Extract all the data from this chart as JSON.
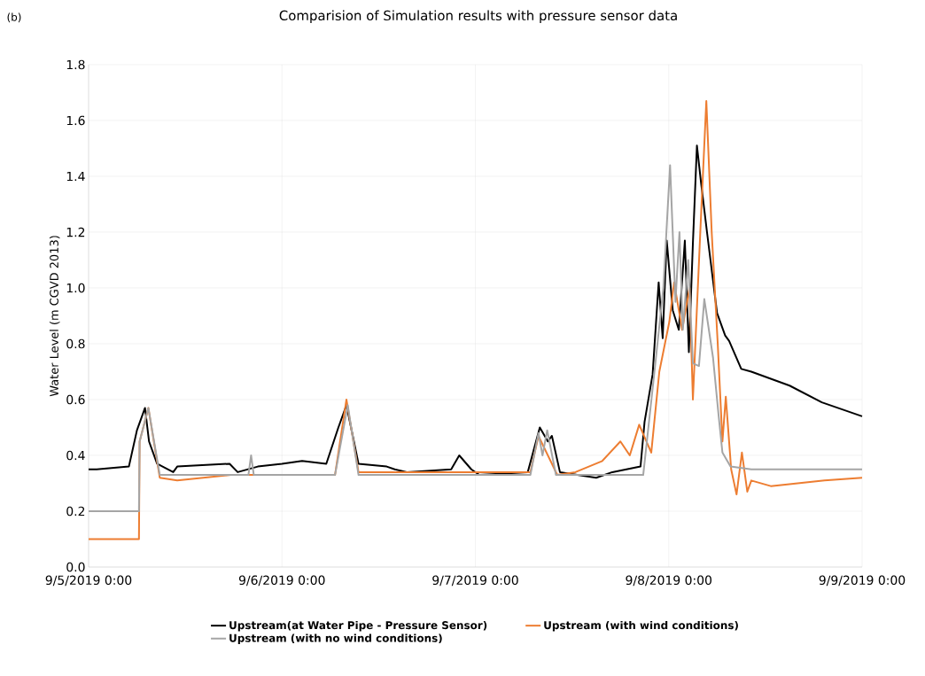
{
  "chart_data": {
    "type": "line",
    "title": "Comparision of Simulation results with pressure sensor data",
    "ylabel": "Water Level (m CGVD 2013)",
    "annotations": [
      "(b)"
    ],
    "xlim": [
      "2019-09-05T00:00",
      "2019-09-09T00:00"
    ],
    "xticks": [
      {
        "value": "2019-09-05T00:00",
        "label": "9/5/2019 0:00"
      },
      {
        "value": "2019-09-06T00:00",
        "label": "9/6/2019 0:00"
      },
      {
        "value": "2019-09-07T00:00",
        "label": "9/7/2019 0:00"
      },
      {
        "value": "2019-09-08T00:00",
        "label": "9/8/2019 0:00"
      },
      {
        "value": "2019-09-09T00:00",
        "label": "9/9/2019 0:00"
      }
    ],
    "ylim": [
      0,
      1.8
    ],
    "yticks": [
      {
        "value": 0,
        "label": "0.0"
      },
      {
        "value": 0.2,
        "label": "0.2"
      },
      {
        "value": 0.4,
        "label": "0.4"
      },
      {
        "value": 0.6,
        "label": "0.6"
      },
      {
        "value": 0.8,
        "label": "0.8"
      },
      {
        "value": 1.0,
        "label": "1.0"
      },
      {
        "value": 1.2,
        "label": "1.2"
      },
      {
        "value": 1.4,
        "label": "1.4"
      },
      {
        "value": 1.6,
        "label": "1.6"
      },
      {
        "value": 1.8,
        "label": "1.8"
      }
    ],
    "grid": true,
    "legend": "bottom",
    "marker": "none",
    "line_style": "solid",
    "series": [
      {
        "name": "Upstream(at Water Pipe - Pressure Sensor)",
        "color": "#000000",
        "x": [
          "2019-09-05T00:00",
          "2019-09-05T01:00",
          "2019-09-05T05:00",
          "2019-09-05T06:00",
          "2019-09-05T07:00",
          "2019-09-05T07:30",
          "2019-09-05T08:30",
          "2019-09-05T10:30",
          "2019-09-05T11:00",
          "2019-09-05T17:30",
          "2019-09-05T18:30",
          "2019-09-05T21:00",
          "2019-09-06T00:00",
          "2019-09-06T02:30",
          "2019-09-06T05:30",
          "2019-09-06T07:00",
          "2019-09-06T08:00",
          "2019-09-06T09:30",
          "2019-09-06T13:00",
          "2019-09-06T14:00",
          "2019-09-06T15:30",
          "2019-09-06T21:00",
          "2019-09-06T22:00",
          "2019-09-06T23:30",
          "2019-09-07T00:30",
          "2019-09-07T06:30",
          "2019-09-07T08:00",
          "2019-09-07T09:00",
          "2019-09-07T09:30",
          "2019-09-07T10:30",
          "2019-09-07T15:00",
          "2019-09-07T17:00",
          "2019-09-07T20:30",
          "2019-09-07T21:00",
          "2019-09-07T22:00",
          "2019-09-07T22:45",
          "2019-09-07T23:15",
          "2019-09-07T23:45",
          "2019-09-08T00:30",
          "2019-09-08T01:15",
          "2019-09-08T02:00",
          "2019-09-08T02:30",
          "2019-09-08T03:00",
          "2019-09-08T03:30",
          "2019-09-08T04:00",
          "2019-09-08T04:45",
          "2019-09-08T06:00",
          "2019-09-08T07:00",
          "2019-09-08T07:30",
          "2019-09-08T09:00",
          "2019-09-08T10:15",
          "2019-09-08T15:00",
          "2019-09-08T19:00",
          "2019-09-09T00:00"
        ],
        "values": [
          0.35,
          0.35,
          0.36,
          0.49,
          0.57,
          0.45,
          0.37,
          0.34,
          0.36,
          0.37,
          0.34,
          0.36,
          0.37,
          0.38,
          0.37,
          0.5,
          0.58,
          0.37,
          0.36,
          0.35,
          0.34,
          0.35,
          0.4,
          0.35,
          0.33,
          0.34,
          0.5,
          0.45,
          0.47,
          0.34,
          0.32,
          0.34,
          0.36,
          0.52,
          0.69,
          1.02,
          0.82,
          1.17,
          0.92,
          0.85,
          1.17,
          0.77,
          1.16,
          1.51,
          1.38,
          1.2,
          0.91,
          0.83,
          0.81,
          0.71,
          0.7,
          0.65,
          0.59,
          0.54
        ]
      },
      {
        "name": "Upstream (with wind conditions)",
        "color": "#ed7d31",
        "x": [
          "2019-09-05T00:00",
          "2019-09-05T06:15",
          "2019-09-05T06:20",
          "2019-09-05T07:25",
          "2019-09-05T08:50",
          "2019-09-05T11:00",
          "2019-09-05T17:40",
          "2019-09-06T06:35",
          "2019-09-06T08:00",
          "2019-09-06T09:30",
          "2019-09-07T06:50",
          "2019-09-07T07:50",
          "2019-09-07T10:10",
          "2019-09-07T12:25",
          "2019-09-07T15:45",
          "2019-09-07T18:00",
          "2019-09-07T19:10",
          "2019-09-07T20:20",
          "2019-09-07T21:50",
          "2019-09-07T22:50",
          "2019-09-08T00:05",
          "2019-09-08T00:40",
          "2019-09-08T01:40",
          "2019-09-08T02:35",
          "2019-09-08T03:00",
          "2019-09-08T03:55",
          "2019-09-08T04:40",
          "2019-09-08T05:20",
          "2019-09-08T06:05",
          "2019-09-08T06:40",
          "2019-09-08T07:05",
          "2019-09-08T07:45",
          "2019-09-08T08:25",
          "2019-09-08T09:05",
          "2019-09-08T09:45",
          "2019-09-08T10:15",
          "2019-09-08T12:40",
          "2019-09-08T16:00",
          "2019-09-08T19:20",
          "2019-09-09T00:00"
        ],
        "values": [
          0.1,
          0.1,
          0.45,
          0.57,
          0.32,
          0.31,
          0.33,
          0.33,
          0.6,
          0.34,
          0.34,
          0.47,
          0.33,
          0.34,
          0.38,
          0.45,
          0.4,
          0.51,
          0.41,
          0.7,
          0.88,
          1.02,
          0.85,
          1.0,
          0.6,
          1.2,
          1.67,
          1.2,
          0.8,
          0.45,
          0.61,
          0.35,
          0.26,
          0.41,
          0.27,
          0.31,
          0.29,
          0.3,
          0.31,
          0.32
        ]
      },
      {
        "name": "Upstream (with no wind conditions)",
        "color": "#a5a5a5",
        "x": [
          "2019-09-05T00:00",
          "2019-09-05T06:15",
          "2019-09-05T06:20",
          "2019-09-05T07:25",
          "2019-09-05T08:50",
          "2019-09-05T19:50",
          "2019-09-05T20:10",
          "2019-09-05T20:30",
          "2019-09-06T06:35",
          "2019-09-06T08:10",
          "2019-09-06T09:30",
          "2019-09-07T06:50",
          "2019-09-07T07:50",
          "2019-09-07T08:20",
          "2019-09-07T08:55",
          "2019-09-07T10:00",
          "2019-09-07T20:50",
          "2019-09-07T22:25",
          "2019-09-07T23:20",
          "2019-09-08T00:10",
          "2019-09-08T00:50",
          "2019-09-08T01:20",
          "2019-09-08T01:45",
          "2019-09-08T02:25",
          "2019-09-08T03:00",
          "2019-09-08T03:45",
          "2019-09-08T04:25",
          "2019-09-08T05:30",
          "2019-09-08T06:10",
          "2019-09-08T06:40",
          "2019-09-08T07:40",
          "2019-09-08T10:15",
          "2019-09-09T00:00"
        ],
        "values": [
          0.2,
          0.2,
          0.45,
          0.57,
          0.33,
          0.33,
          0.4,
          0.33,
          0.33,
          0.58,
          0.33,
          0.33,
          0.48,
          0.4,
          0.49,
          0.33,
          0.33,
          0.75,
          1.0,
          1.44,
          0.95,
          1.2,
          0.85,
          1.1,
          0.73,
          0.72,
          0.96,
          0.75,
          0.55,
          0.41,
          0.36,
          0.35,
          0.35
        ]
      }
    ]
  }
}
